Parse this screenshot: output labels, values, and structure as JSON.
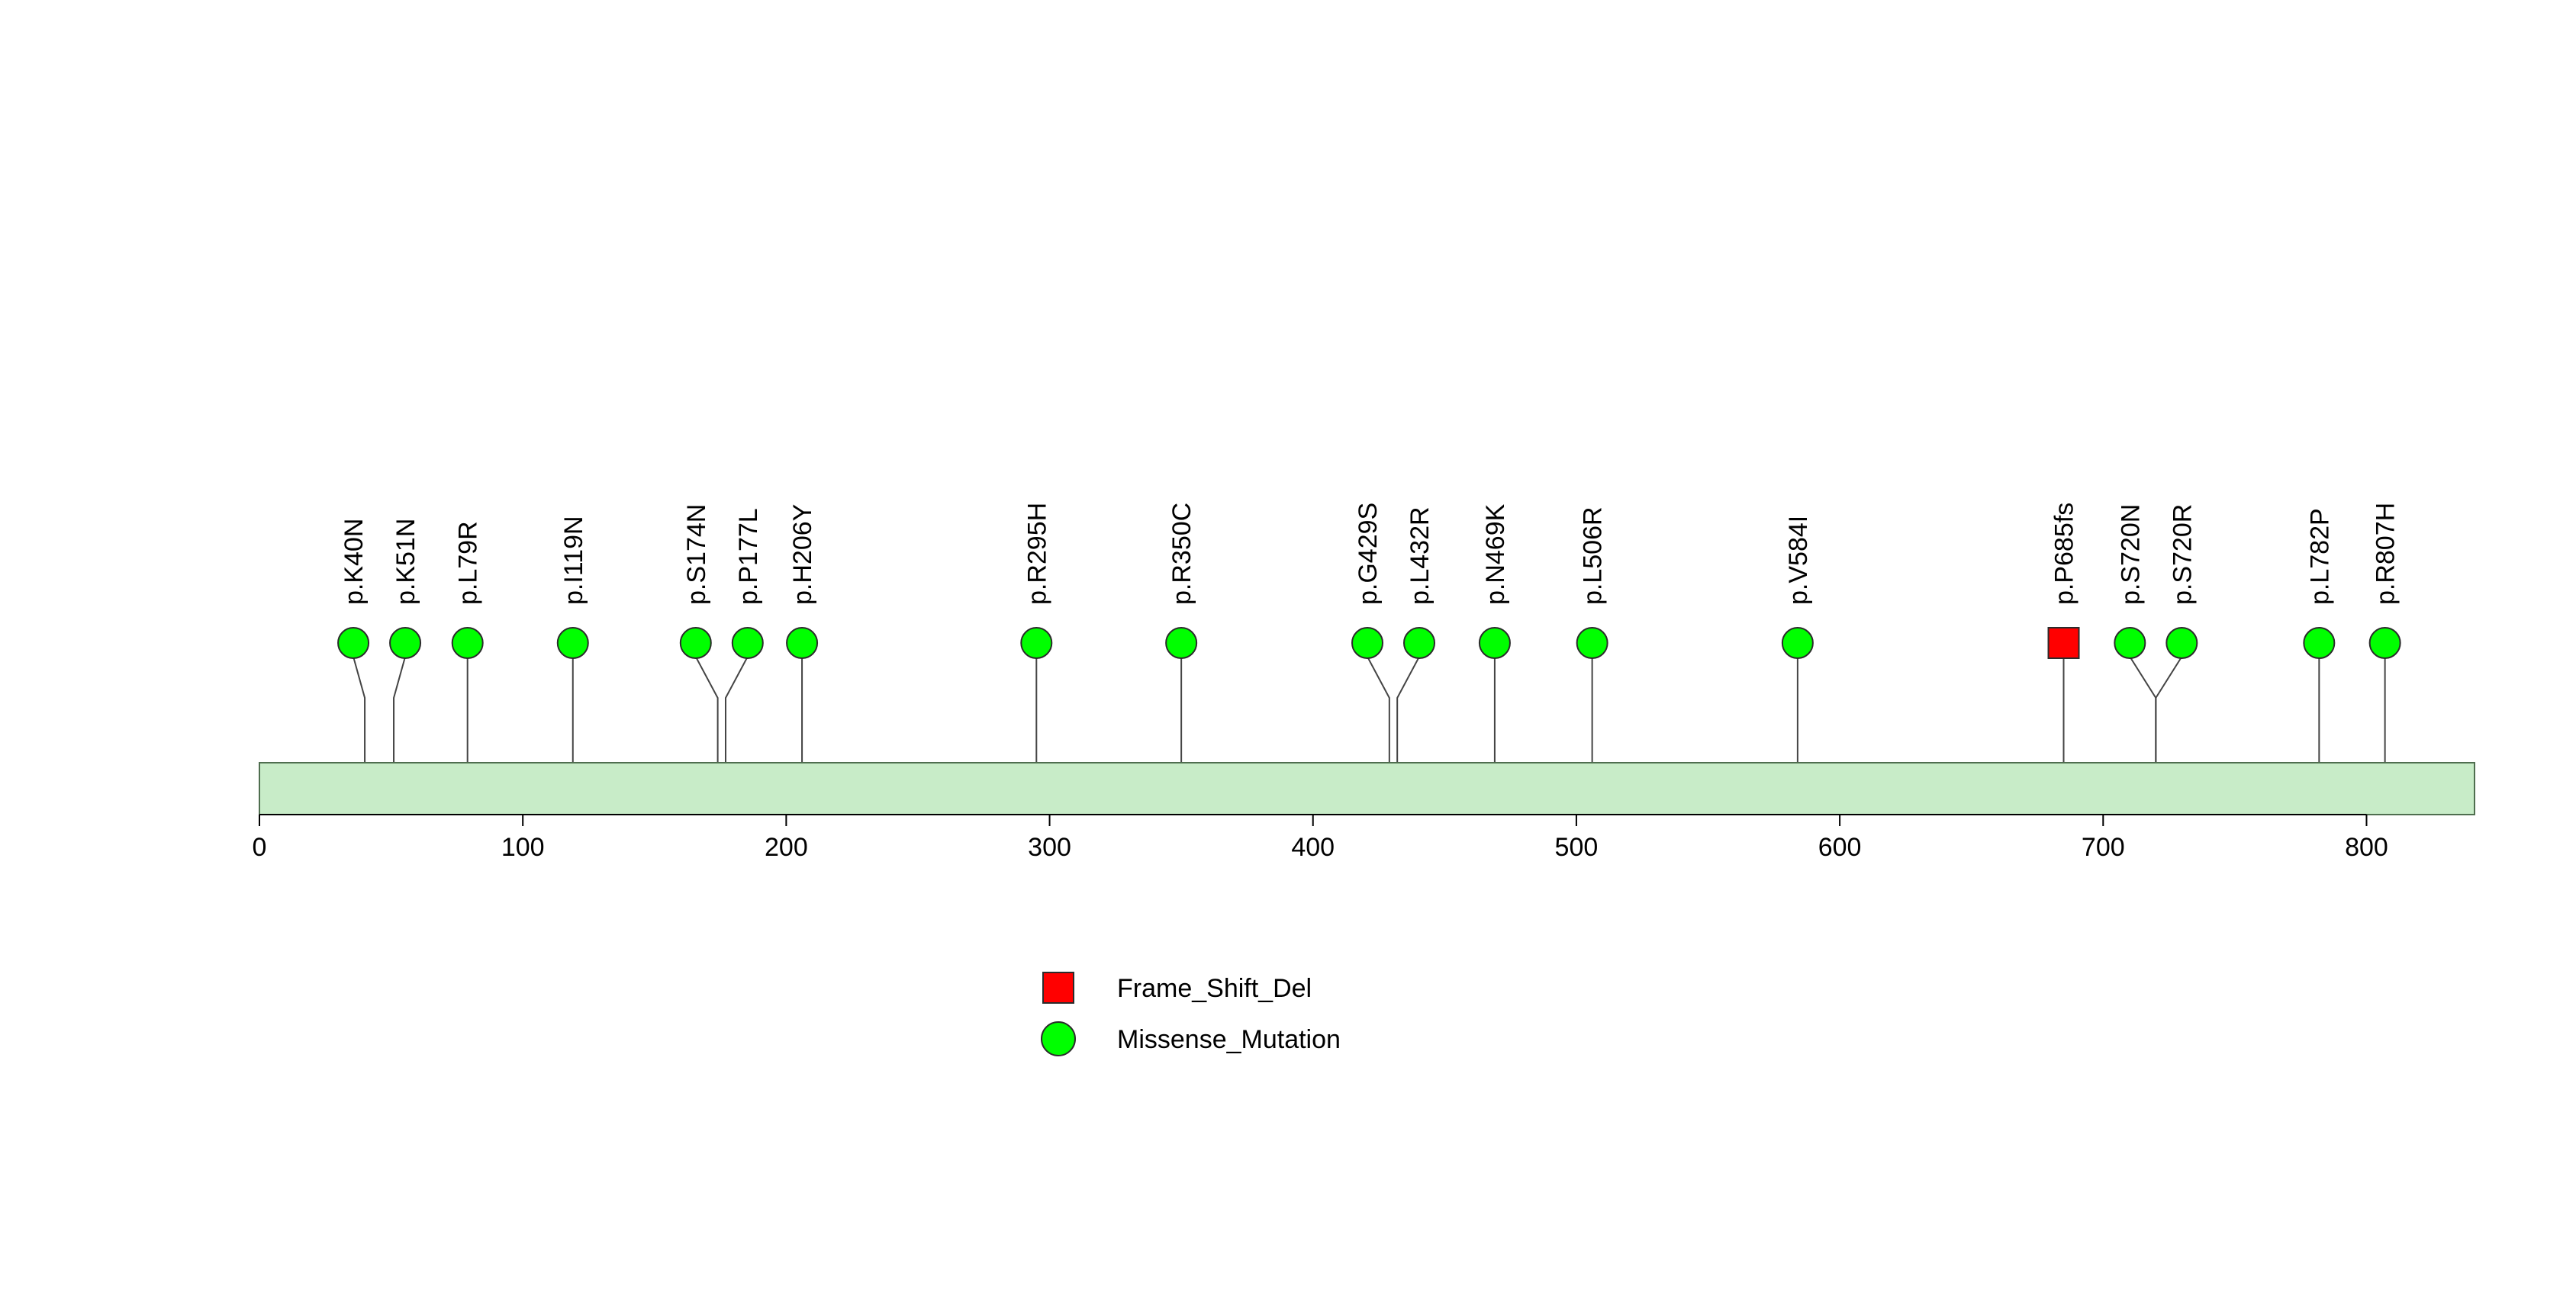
{
  "chart_data": {
    "type": "lollipop",
    "protein_length": 841,
    "xlim": [
      0,
      841
    ],
    "x_ticks": [
      0,
      100,
      200,
      300,
      400,
      500,
      600,
      700,
      800
    ],
    "colors": {
      "protein_bar_fill": "#c8ecc8",
      "protein_bar_stroke": "#4f6e4f",
      "Missense_Mutation": "#00ff00",
      "Frame_Shift_Del": "#ff0000",
      "marker_stroke": "#2b2b2b",
      "stem": "#444444"
    },
    "mutations": [
      {
        "label": "p.K40N",
        "position": 40,
        "type": "Missense_Mutation"
      },
      {
        "label": "p.K51N",
        "position": 51,
        "type": "Missense_Mutation"
      },
      {
        "label": "p.L79R",
        "position": 79,
        "type": "Missense_Mutation"
      },
      {
        "label": "p.I119N",
        "position": 119,
        "type": "Missense_Mutation"
      },
      {
        "label": "p.S174N",
        "position": 174,
        "type": "Missense_Mutation"
      },
      {
        "label": "p.P177L",
        "position": 177,
        "type": "Missense_Mutation"
      },
      {
        "label": "p.H206Y",
        "position": 206,
        "type": "Missense_Mutation"
      },
      {
        "label": "p.R295H",
        "position": 295,
        "type": "Missense_Mutation"
      },
      {
        "label": "p.R350C",
        "position": 350,
        "type": "Missense_Mutation"
      },
      {
        "label": "p.G429S",
        "position": 429,
        "type": "Missense_Mutation"
      },
      {
        "label": "p.L432R",
        "position": 432,
        "type": "Missense_Mutation"
      },
      {
        "label": "p.N469K",
        "position": 469,
        "type": "Missense_Mutation"
      },
      {
        "label": "p.L506R",
        "position": 506,
        "type": "Missense_Mutation"
      },
      {
        "label": "p.V584I",
        "position": 584,
        "type": "Missense_Mutation"
      },
      {
        "label": "p.P685fs",
        "position": 685,
        "type": "Frame_Shift_Del"
      },
      {
        "label": "p.S720N",
        "position": 720,
        "type": "Missense_Mutation"
      },
      {
        "label": "p.S720R",
        "position": 720,
        "type": "Missense_Mutation"
      },
      {
        "label": "p.L782P",
        "position": 782,
        "type": "Missense_Mutation"
      },
      {
        "label": "p.R807H",
        "position": 807,
        "type": "Missense_Mutation"
      }
    ],
    "legend": [
      {
        "label": "Frame_Shift_Del",
        "type": "Frame_Shift_Del",
        "shape": "square"
      },
      {
        "label": "Missense_Mutation",
        "type": "Missense_Mutation",
        "shape": "circle"
      }
    ]
  }
}
